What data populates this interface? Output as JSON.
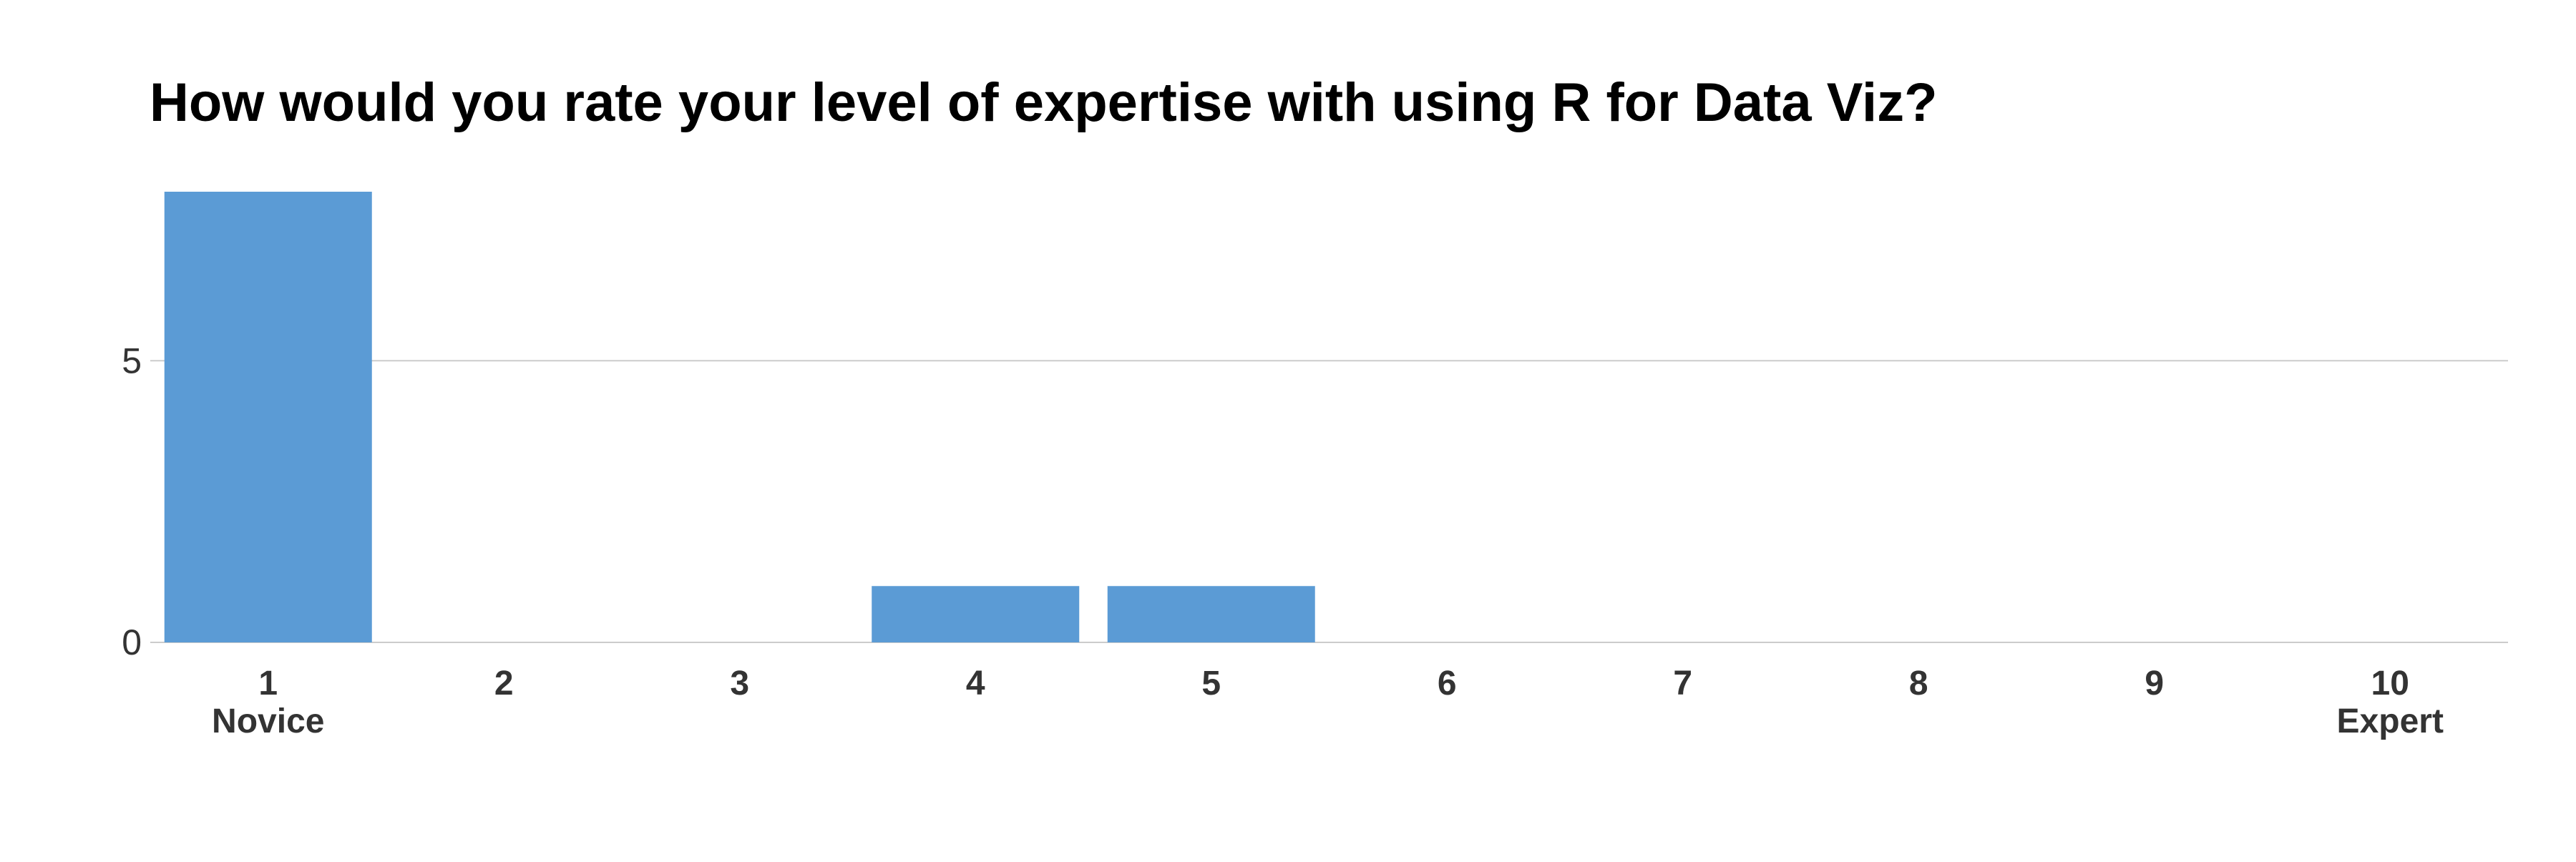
{
  "chart_data": {
    "type": "bar",
    "title": "How would you rate your level of expertise with using R for Data Viz?",
    "categories": [
      "1",
      "2",
      "3",
      "4",
      "5",
      "6",
      "7",
      "8",
      "9",
      "10"
    ],
    "category_sublabels": {
      "1": "Novice",
      "10": "Expert"
    },
    "values": [
      8,
      0,
      0,
      1,
      1,
      0,
      0,
      0,
      0,
      0
    ],
    "ylim": [
      0,
      8
    ],
    "yticks": [
      0,
      5
    ],
    "xlabel": "",
    "ylabel": "",
    "grid": true,
    "legend": "none",
    "colors": {
      "bar": "#5b9bd5",
      "grid": "#cccccc",
      "axis_text": "#333333",
      "title": "#000000"
    }
  }
}
